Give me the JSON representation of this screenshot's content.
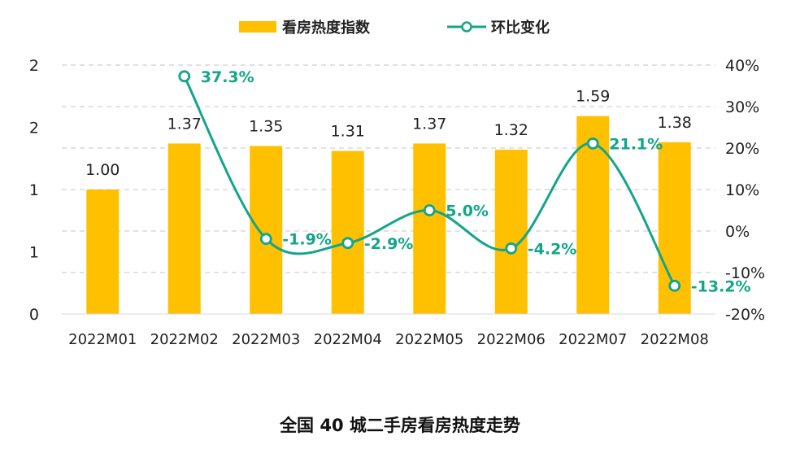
{
  "chart_data": {
    "type": "bar",
    "title": "全国 40 城二手房看房热度走势",
    "categories": [
      "2022M01",
      "2022M02",
      "2022M03",
      "2022M04",
      "2022M05",
      "2022M06",
      "2022M07",
      "2022M08"
    ],
    "series": [
      {
        "name": "看房热度指数",
        "type": "bar",
        "axis": "left",
        "color": "#FFC000",
        "values": [
          1.0,
          1.37,
          1.35,
          1.31,
          1.37,
          1.32,
          1.59,
          1.38
        ],
        "labels": [
          "1.00",
          "1.37",
          "1.35",
          "1.31",
          "1.37",
          "1.32",
          "1.59",
          "1.38"
        ]
      },
      {
        "name": "环比变化",
        "type": "line",
        "axis": "right",
        "color": "#13A58A",
        "smooth": true,
        "marker": "hollow-circle",
        "values": [
          null,
          37.3,
          -1.9,
          -2.9,
          5.0,
          -4.2,
          21.1,
          -13.2
        ],
        "labels": [
          "",
          "37.3%",
          "-1.9%",
          "-2.9%",
          "5.0%",
          "-4.2%",
          "21.1%",
          "-13.2%"
        ]
      }
    ],
    "y_left": {
      "ylim": [
        0,
        2.0
      ],
      "tick_values": [
        0,
        0.5,
        1.0,
        1.5,
        2.0
      ],
      "tick_labels": [
        "0",
        "1",
        "1",
        "2",
        "2"
      ]
    },
    "y_right": {
      "ylim": [
        -20,
        40
      ],
      "tick_values": [
        -20,
        -10,
        0,
        10,
        20,
        30,
        40
      ],
      "tick_labels": [
        "-20%",
        "-10%",
        "0%",
        "10%",
        "20%",
        "30%",
        "40%"
      ]
    },
    "grid": true,
    "grid_style": "dashed",
    "legend_position": "top-center"
  }
}
